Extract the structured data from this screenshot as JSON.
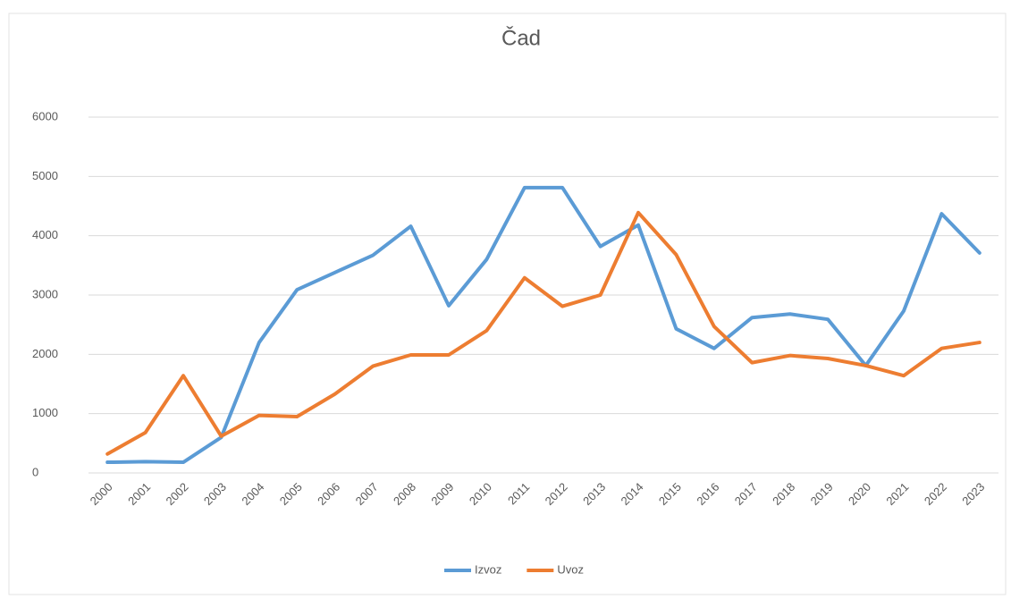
{
  "chart_data": {
    "type": "line",
    "title": "Čad",
    "categories": [
      "2000",
      "2001",
      "2002",
      "2003",
      "2004",
      "2005",
      "2006",
      "2007",
      "2008",
      "2009",
      "2010",
      "2011",
      "2012",
      "2013",
      "2014",
      "2015",
      "2016",
      "2017",
      "2018",
      "2019",
      "2020",
      "2021",
      "2022",
      "2023"
    ],
    "series": [
      {
        "name": "Izvoz",
        "color": "#5b9bd5",
        "values": [
          180,
          190,
          180,
          600,
          2200,
          3090,
          3380,
          3670,
          4160,
          2820,
          3600,
          4810,
          4810,
          3820,
          4180,
          2430,
          2100,
          2620,
          2680,
          2590,
          1810,
          2730,
          4370,
          3710
        ]
      },
      {
        "name": "Uvoz",
        "color": "#ed7d31",
        "values": [
          320,
          680,
          1640,
          620,
          970,
          950,
          1330,
          1800,
          1990,
          1990,
          2400,
          3290,
          2810,
          3000,
          4390,
          3680,
          2470,
          1860,
          1980,
          1930,
          1810,
          1640,
          2100,
          2200
        ]
      }
    ],
    "ylim": [
      0,
      6000
    ],
    "yticks": [
      0,
      1000,
      2000,
      3000,
      4000,
      5000,
      6000
    ],
    "grid": true,
    "legend": "bottom"
  }
}
